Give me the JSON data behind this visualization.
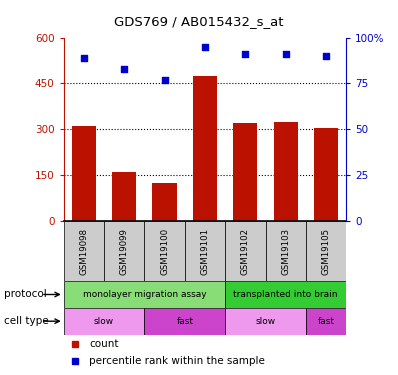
{
  "title": "GDS769 / AB015432_s_at",
  "samples": [
    "GSM19098",
    "GSM19099",
    "GSM19100",
    "GSM19101",
    "GSM19102",
    "GSM19103",
    "GSM19105"
  ],
  "counts": [
    310,
    160,
    125,
    475,
    320,
    325,
    305
  ],
  "percentiles": [
    89,
    83,
    77,
    95,
    91,
    91,
    90
  ],
  "ylim_left": [
    0,
    600
  ],
  "ylim_right": [
    0,
    100
  ],
  "yticks_left": [
    0,
    150,
    300,
    450,
    600
  ],
  "yticks_right": [
    0,
    25,
    50,
    75,
    100
  ],
  "ytick_labels_left": [
    "0",
    "150",
    "300",
    "450",
    "600"
  ],
  "ytick_labels_right": [
    "0",
    "25",
    "50",
    "75",
    "100%"
  ],
  "bar_color": "#bb1100",
  "scatter_color": "#0000cc",
  "protocol_groups": [
    {
      "label": "monolayer migration assay",
      "start": 0,
      "end": 4,
      "color": "#88dd77"
    },
    {
      "label": "transplanted into brain",
      "start": 4,
      "end": 7,
      "color": "#33cc33"
    }
  ],
  "cell_type_groups": [
    {
      "label": "slow",
      "start": 0,
      "end": 2,
      "color": "#ee99ee"
    },
    {
      "label": "fast",
      "start": 2,
      "end": 4,
      "color": "#cc44cc"
    },
    {
      "label": "slow",
      "start": 4,
      "end": 6,
      "color": "#ee99ee"
    },
    {
      "label": "fast",
      "start": 6,
      "end": 7,
      "color": "#cc44cc"
    }
  ],
  "sample_bg_color": "#cccccc",
  "label_protocol": "protocol",
  "label_cell_type": "cell type",
  "legend_items": [
    {
      "label": "count",
      "color": "#bb1100"
    },
    {
      "label": "percentile rank within the sample",
      "color": "#0000cc"
    }
  ]
}
